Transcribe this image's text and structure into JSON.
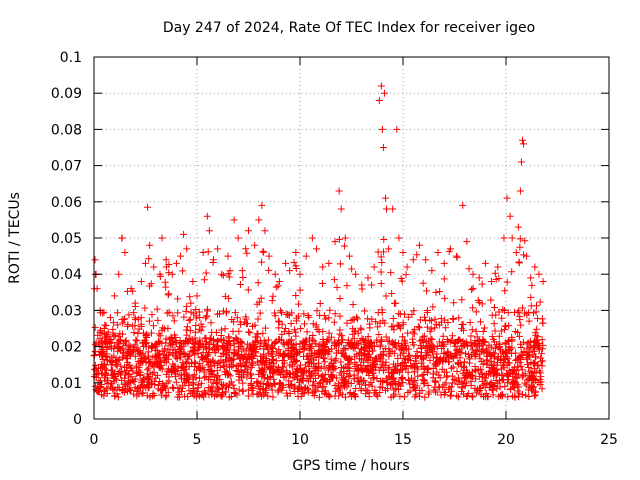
{
  "chart_data": {
    "type": "scatter",
    "title": "Day 247 of 2024, Rate Of TEC Index for receiver igeo",
    "xlabel": "GPS time / hours",
    "ylabel": "ROTI / TECUs",
    "xlim": [
      0,
      25
    ],
    "ylim": [
      0,
      0.1
    ],
    "xticks": [
      "0",
      "5",
      "10",
      "15",
      "20",
      "25"
    ],
    "xtick_values": [
      0,
      5,
      10,
      15,
      20,
      25
    ],
    "yticks": [
      "0",
      "0.01",
      "0.02",
      "0.03",
      "0.04",
      "0.05",
      "0.06",
      "0.07",
      "0.08",
      "0.09",
      "0.1"
    ],
    "ytick_values": [
      0,
      0.01,
      0.02,
      0.03,
      0.04,
      0.05,
      0.06,
      0.07,
      0.08,
      0.09,
      0.1
    ],
    "grid": true,
    "marker": "+",
    "color": "#ff0000",
    "x_range_observed": [
      0.0,
      21.8
    ],
    "series": [
      {
        "points": [
          [
            0.05,
            0.044
          ],
          [
            0.1,
            0.04
          ],
          [
            0.15,
            0.036
          ],
          [
            0.3,
            0.03
          ],
          [
            0.5,
            0.025
          ],
          [
            0.8,
            0.028
          ],
          [
            1.0,
            0.034
          ],
          [
            1.2,
            0.04
          ],
          [
            1.35,
            0.05
          ],
          [
            1.5,
            0.046
          ],
          [
            1.8,
            0.036
          ],
          [
            2.0,
            0.032
          ],
          [
            2.3,
            0.038
          ],
          [
            2.5,
            0.043
          ],
          [
            2.6,
            0.0585
          ],
          [
            2.7,
            0.048
          ],
          [
            2.9,
            0.042
          ],
          [
            3.2,
            0.04
          ],
          [
            3.3,
            0.05
          ],
          [
            3.5,
            0.044
          ],
          [
            3.8,
            0.04
          ],
          [
            4.0,
            0.043
          ],
          [
            4.2,
            0.045
          ],
          [
            4.35,
            0.051
          ],
          [
            4.5,
            0.047
          ],
          [
            4.8,
            0.038
          ],
          [
            5.0,
            0.034
          ],
          [
            5.3,
            0.046
          ],
          [
            5.5,
            0.056
          ],
          [
            5.6,
            0.052
          ],
          [
            5.8,
            0.044
          ],
          [
            6.0,
            0.047
          ],
          [
            6.2,
            0.04
          ],
          [
            6.5,
            0.045
          ],
          [
            6.8,
            0.055
          ],
          [
            7.0,
            0.05
          ],
          [
            7.2,
            0.041
          ],
          [
            7.5,
            0.052
          ],
          [
            7.8,
            0.048
          ],
          [
            8.0,
            0.055
          ],
          [
            8.15,
            0.059
          ],
          [
            8.3,
            0.052
          ],
          [
            8.5,
            0.045
          ],
          [
            8.8,
            0.04
          ],
          [
            9.0,
            0.038
          ],
          [
            9.3,
            0.043
          ],
          [
            9.5,
            0.041
          ],
          [
            9.8,
            0.046
          ],
          [
            10.0,
            0.04
          ],
          [
            10.3,
            0.045
          ],
          [
            10.6,
            0.05
          ],
          [
            10.8,
            0.047
          ],
          [
            11.1,
            0.042
          ],
          [
            11.4,
            0.043
          ],
          [
            11.7,
            0.049
          ],
          [
            11.9,
            0.063
          ],
          [
            12.0,
            0.058
          ],
          [
            12.2,
            0.05
          ],
          [
            12.4,
            0.045
          ],
          [
            12.7,
            0.04
          ],
          [
            13.0,
            0.037
          ],
          [
            13.3,
            0.039
          ],
          [
            13.6,
            0.042
          ],
          [
            13.85,
            0.088
          ],
          [
            13.95,
            0.092
          ],
          [
            14.0,
            0.08
          ],
          [
            14.05,
            0.075
          ],
          [
            14.1,
            0.09
          ],
          [
            14.15,
            0.061
          ],
          [
            14.2,
            0.058
          ],
          [
            14.3,
            0.047
          ],
          [
            14.5,
            0.058
          ],
          [
            14.7,
            0.08
          ],
          [
            14.8,
            0.05
          ],
          [
            15.0,
            0.046
          ],
          [
            15.2,
            0.042
          ],
          [
            15.5,
            0.044
          ],
          [
            15.8,
            0.048
          ],
          [
            16.1,
            0.044
          ],
          [
            16.4,
            0.041
          ],
          [
            16.7,
            0.046
          ],
          [
            17.0,
            0.043
          ],
          [
            17.3,
            0.047
          ],
          [
            17.6,
            0.045
          ],
          [
            17.9,
            0.059
          ],
          [
            18.1,
            0.049
          ],
          [
            18.4,
            0.04
          ],
          [
            18.7,
            0.039
          ],
          [
            19.0,
            0.043
          ],
          [
            19.3,
            0.038
          ],
          [
            19.6,
            0.042
          ],
          [
            19.9,
            0.05
          ],
          [
            20.05,
            0.061
          ],
          [
            20.2,
            0.056
          ],
          [
            20.3,
            0.05
          ],
          [
            20.5,
            0.046
          ],
          [
            20.6,
            0.053
          ],
          [
            20.7,
            0.063
          ],
          [
            20.75,
            0.071
          ],
          [
            20.8,
            0.077
          ],
          [
            20.85,
            0.076
          ],
          [
            21.0,
            0.045
          ],
          [
            21.2,
            0.039
          ],
          [
            21.4,
            0.042
          ],
          [
            21.6,
            0.04
          ],
          [
            21.8,
            0.038
          ]
        ]
      }
    ]
  }
}
